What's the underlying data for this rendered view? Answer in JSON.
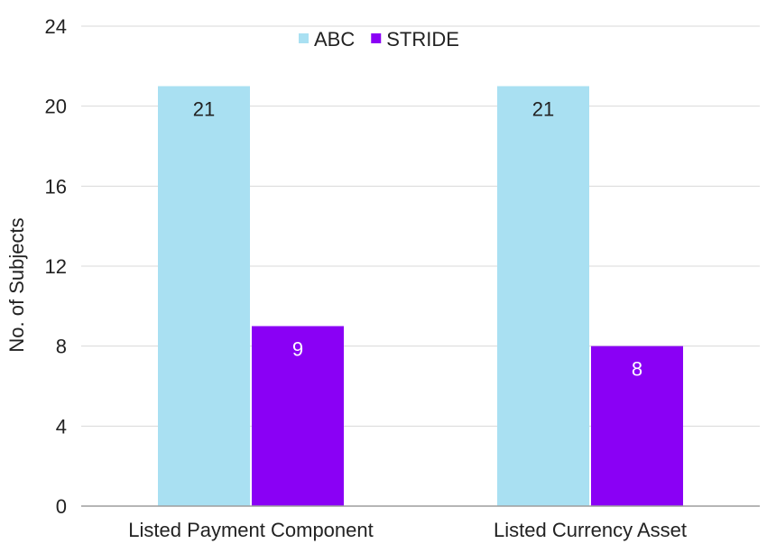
{
  "chart_data": {
    "type": "bar",
    "title": "",
    "xlabel": "",
    "ylabel": "No. of Subjects",
    "ylim": [
      0,
      24
    ],
    "yticks": [
      0,
      4,
      8,
      12,
      16,
      20,
      24
    ],
    "grid": true,
    "legend_position": "top-center",
    "categories": [
      "Listed Payment Component",
      "Listed Currency Asset"
    ],
    "series": [
      {
        "name": "ABC",
        "color": "#a9e0f2",
        "label_color": "#222222",
        "values": [
          21,
          21
        ]
      },
      {
        "name": "STRIDE",
        "color": "#8a00f5",
        "label_color": "#ffffff",
        "values": [
          9,
          8
        ]
      }
    ]
  }
}
